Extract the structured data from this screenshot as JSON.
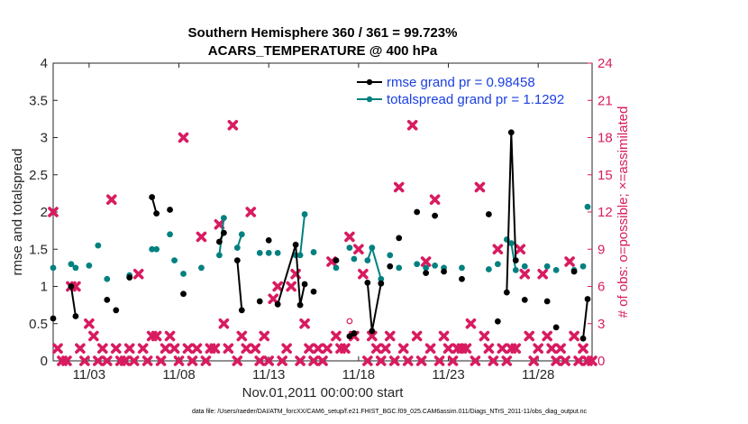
{
  "chart_data": {
    "type": "line",
    "title_line1": "Southern Hemisphere 360 / 361 = 99.723%",
    "title_line2": "ACARS_TEMPERATURE @ 400 hPa",
    "xlabel": "Nov.01,2011 00:00:00 start",
    "ylabel_left": "rmse and totalspread",
    "ylabel_right": "# of obs: o=possible; ×=assimilated",
    "x_range": [
      1,
      31
    ],
    "ylim_left": [
      0,
      4
    ],
    "ylim_right": [
      0,
      24
    ],
    "x_ticks": [
      {
        "x": 3,
        "label": "11/03"
      },
      {
        "x": 8,
        "label": "11/08"
      },
      {
        "x": 13,
        "label": "11/13"
      },
      {
        "x": 18,
        "label": "11/18"
      },
      {
        "x": 23,
        "label": "11/23"
      },
      {
        "x": 28,
        "label": "11/28"
      }
    ],
    "y_ticks_left": [
      "0",
      "0.5",
      "1",
      "1.5",
      "2",
      "2.5",
      "3",
      "3.5",
      "4"
    ],
    "y_ticks_right": [
      "0",
      "3",
      "6",
      "9",
      "12",
      "15",
      "18",
      "21",
      "24"
    ],
    "legend": [
      {
        "label": "rmse grand pr = 0.98458",
        "color": "#000000"
      },
      {
        "label": "totalspread grand pr = 1.1292",
        "color": "#008080"
      }
    ],
    "colors": {
      "rmse": "#000000",
      "spread": "#008080",
      "obs": "#d81b60",
      "legend_text": "#1a3fe0"
    },
    "rmse_points": [
      [
        1.0,
        0.57
      ],
      [
        2.0,
        1.0
      ],
      [
        2.25,
        0.6
      ],
      [
        4.0,
        0.82
      ],
      [
        4.5,
        0.68
      ],
      [
        5.25,
        1.12
      ],
      [
        6.5,
        2.2
      ],
      [
        6.75,
        1.98
      ],
      [
        7.5,
        2.03
      ],
      [
        8.25,
        0.9
      ],
      [
        10.25,
        1.6
      ],
      [
        10.5,
        1.72
      ],
      [
        11.25,
        1.35
      ],
      [
        11.5,
        0.68
      ],
      [
        12.5,
        0.8
      ],
      [
        13.0,
        1.62
      ],
      [
        13.5,
        0.76
      ],
      [
        14.5,
        1.56
      ],
      [
        14.75,
        0.75
      ],
      [
        15.0,
        1.03
      ],
      [
        15.5,
        0.93
      ],
      [
        16.75,
        1.35
      ],
      [
        17.5,
        0.33
      ],
      [
        17.75,
        0.37
      ],
      [
        18.5,
        1.05
      ],
      [
        18.75,
        0.4
      ],
      [
        19.25,
        1.04
      ],
      [
        19.75,
        1.27
      ],
      [
        20.25,
        1.65
      ],
      [
        21.25,
        2.0
      ],
      [
        21.75,
        1.18
      ],
      [
        22.25,
        1.95
      ],
      [
        22.75,
        1.2
      ],
      [
        23.75,
        1.1
      ],
      [
        25.25,
        1.97
      ],
      [
        25.75,
        0.53
      ],
      [
        26.25,
        0.92
      ],
      [
        26.5,
        3.07
      ],
      [
        26.75,
        1.35
      ],
      [
        27.25,
        0.82
      ],
      [
        28.5,
        0.8
      ],
      [
        29.0,
        0.45
      ],
      [
        30.0,
        1.2
      ],
      [
        30.5,
        0.3
      ],
      [
        30.75,
        0.83
      ]
    ],
    "spread_points": [
      [
        1.0,
        1.25
      ],
      [
        2.0,
        1.3
      ],
      [
        2.25,
        1.25
      ],
      [
        3.0,
        1.28
      ],
      [
        3.5,
        1.55
      ],
      [
        4.0,
        1.1
      ],
      [
        5.25,
        1.15
      ],
      [
        6.5,
        1.5
      ],
      [
        6.75,
        1.5
      ],
      [
        7.5,
        1.7
      ],
      [
        7.75,
        1.35
      ],
      [
        8.25,
        1.17
      ],
      [
        9.25,
        1.25
      ],
      [
        10.25,
        1.42
      ],
      [
        10.5,
        1.92
      ],
      [
        11.25,
        1.52
      ],
      [
        11.5,
        1.7
      ],
      [
        12.5,
        1.45
      ],
      [
        13.0,
        1.45
      ],
      [
        13.5,
        1.45
      ],
      [
        14.5,
        1.42
      ],
      [
        14.75,
        1.42
      ],
      [
        15.0,
        1.97
      ],
      [
        15.5,
        1.46
      ],
      [
        16.75,
        1.25
      ],
      [
        17.5,
        1.52
      ],
      [
        17.75,
        1.37
      ],
      [
        18.5,
        1.35
      ],
      [
        18.75,
        1.52
      ],
      [
        19.25,
        1.1
      ],
      [
        19.75,
        1.42
      ],
      [
        20.25,
        1.25
      ],
      [
        21.25,
        1.3
      ],
      [
        21.75,
        1.25
      ],
      [
        22.25,
        1.28
      ],
      [
        22.75,
        1.25
      ],
      [
        23.75,
        1.25
      ],
      [
        25.25,
        1.23
      ],
      [
        25.75,
        1.3
      ],
      [
        26.25,
        1.63
      ],
      [
        26.5,
        1.58
      ],
      [
        26.75,
        1.22
      ],
      [
        27.25,
        1.27
      ],
      [
        28.5,
        1.27
      ],
      [
        29.0,
        1.22
      ],
      [
        30.0,
        1.22
      ],
      [
        30.5,
        1.27
      ],
      [
        30.75,
        2.07
      ]
    ],
    "rmse_segments": [
      [
        [
          2.0,
          1.0
        ],
        [
          2.25,
          0.6
        ]
      ],
      [
        [
          6.5,
          2.2
        ],
        [
          6.75,
          1.98
        ]
      ],
      [
        [
          10.25,
          1.6
        ],
        [
          10.5,
          1.72
        ]
      ],
      [
        [
          11.25,
          1.35
        ],
        [
          11.5,
          0.68
        ]
      ],
      [
        [
          13.5,
          0.76
        ],
        [
          14.5,
          1.56
        ],
        [
          14.75,
          0.75
        ],
        [
          15.0,
          1.03
        ]
      ],
      [
        [
          18.5,
          1.05
        ],
        [
          18.75,
          0.4
        ],
        [
          19.25,
          1.04
        ]
      ],
      [
        [
          26.25,
          0.92
        ],
        [
          26.5,
          3.07
        ],
        [
          26.75,
          1.35
        ]
      ],
      [
        [
          30.5,
          0.3
        ],
        [
          30.75,
          0.83
        ]
      ]
    ],
    "spread_segments": [
      [
        [
          2.0,
          1.3
        ],
        [
          2.25,
          1.25
        ]
      ],
      [
        [
          10.25,
          1.42
        ],
        [
          10.5,
          1.92
        ]
      ],
      [
        [
          11.25,
          1.52
        ],
        [
          11.5,
          1.7
        ]
      ],
      [
        [
          14.5,
          1.42
        ],
        [
          14.75,
          1.42
        ],
        [
          15.0,
          1.97
        ]
      ],
      [
        [
          18.5,
          1.35
        ],
        [
          18.75,
          1.52
        ],
        [
          19.25,
          1.1
        ]
      ],
      [
        [
          26.25,
          1.63
        ],
        [
          26.5,
          1.58
        ],
        [
          26.75,
          1.22
        ]
      ]
    ],
    "obs_assimilated": [
      [
        1.0,
        12
      ],
      [
        1.25,
        1
      ],
      [
        1.5,
        0
      ],
      [
        1.75,
        0
      ],
      [
        2.0,
        6
      ],
      [
        2.25,
        6
      ],
      [
        2.5,
        1
      ],
      [
        2.75,
        0
      ],
      [
        3.0,
        3
      ],
      [
        3.25,
        2
      ],
      [
        3.5,
        0
      ],
      [
        3.75,
        1
      ],
      [
        4.0,
        0
      ],
      [
        4.25,
        13
      ],
      [
        4.5,
        1
      ],
      [
        4.75,
        0
      ],
      [
        5.0,
        0
      ],
      [
        5.25,
        1
      ],
      [
        5.5,
        0
      ],
      [
        5.75,
        7
      ],
      [
        6.0,
        1
      ],
      [
        6.25,
        0
      ],
      [
        6.5,
        2
      ],
      [
        6.75,
        2
      ],
      [
        7.0,
        0
      ],
      [
        7.25,
        1
      ],
      [
        7.5,
        2
      ],
      [
        7.75,
        1
      ],
      [
        8.0,
        0
      ],
      [
        8.25,
        18
      ],
      [
        8.5,
        1
      ],
      [
        8.75,
        0
      ],
      [
        9.0,
        1
      ],
      [
        9.25,
        10
      ],
      [
        9.5,
        0
      ],
      [
        9.75,
        1
      ],
      [
        10.0,
        1
      ],
      [
        10.25,
        11
      ],
      [
        10.5,
        3
      ],
      [
        10.75,
        1
      ],
      [
        11.0,
        19
      ],
      [
        11.25,
        0
      ],
      [
        11.5,
        2
      ],
      [
        11.75,
        1
      ],
      [
        12.0,
        12
      ],
      [
        12.25,
        1
      ],
      [
        12.5,
        0
      ],
      [
        12.75,
        2
      ],
      [
        13.0,
        0
      ],
      [
        13.25,
        5
      ],
      [
        13.5,
        6
      ],
      [
        13.75,
        0
      ],
      [
        14.0,
        1
      ],
      [
        14.25,
        6
      ],
      [
        14.5,
        7
      ],
      [
        14.75,
        0
      ],
      [
        15.0,
        3
      ],
      [
        15.25,
        1
      ],
      [
        15.5,
        0
      ],
      [
        15.75,
        1
      ],
      [
        16.0,
        0
      ],
      [
        16.25,
        1
      ],
      [
        16.5,
        8
      ],
      [
        16.75,
        2
      ],
      [
        17.0,
        1
      ],
      [
        17.25,
        1
      ],
      [
        17.5,
        10
      ],
      [
        17.75,
        2
      ],
      [
        18.0,
        9
      ],
      [
        18.25,
        7
      ],
      [
        18.5,
        0
      ],
      [
        18.75,
        2
      ],
      [
        19.0,
        1
      ],
      [
        19.25,
        0
      ],
      [
        19.5,
        1
      ],
      [
        19.75,
        2
      ],
      [
        20.0,
        0
      ],
      [
        20.25,
        14
      ],
      [
        20.5,
        1
      ],
      [
        20.75,
        0
      ],
      [
        21.0,
        19
      ],
      [
        21.25,
        2
      ],
      [
        21.5,
        0
      ],
      [
        21.75,
        8
      ],
      [
        22.0,
        1
      ],
      [
        22.25,
        13
      ],
      [
        22.5,
        0
      ],
      [
        22.75,
        2
      ],
      [
        23.0,
        1
      ],
      [
        23.25,
        0
      ],
      [
        23.5,
        1
      ],
      [
        23.75,
        1
      ],
      [
        24.0,
        1
      ],
      [
        24.25,
        3
      ],
      [
        24.5,
        0
      ],
      [
        24.75,
        14
      ],
      [
        25.0,
        2
      ],
      [
        25.25,
        1
      ],
      [
        25.5,
        0
      ],
      [
        25.75,
        9
      ],
      [
        26.0,
        1
      ],
      [
        26.25,
        0
      ],
      [
        26.5,
        1
      ],
      [
        26.75,
        1
      ],
      [
        27.0,
        9
      ],
      [
        27.25,
        7
      ],
      [
        27.5,
        2
      ],
      [
        27.75,
        0
      ],
      [
        28.0,
        1
      ],
      [
        28.25,
        7
      ],
      [
        28.5,
        2
      ],
      [
        28.75,
        1
      ],
      [
        29.0,
        0
      ],
      [
        29.25,
        1
      ],
      [
        29.5,
        0
      ],
      [
        29.75,
        8
      ],
      [
        30.0,
        2
      ],
      [
        30.25,
        0
      ],
      [
        30.5,
        1
      ],
      [
        30.75,
        0
      ],
      [
        31.0,
        0
      ]
    ],
    "obs_possible": [
      [
        17.5,
        3.2
      ]
    ]
  },
  "footer": {
    "data_file": "data file: /Users/raeder/DAI/ATM_forcXX/CAM6_setup/f.e21.FHIST_BGC.f09_025.CAM6assim.011/Diags_NTrS_2011-11/obs_diag_output.nc"
  }
}
